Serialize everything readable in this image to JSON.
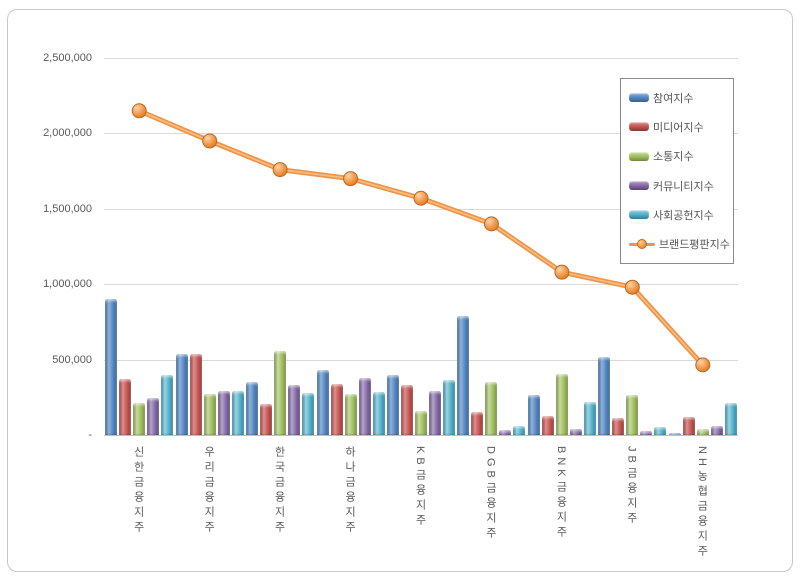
{
  "chart_data": {
    "type": "bar",
    "note": "combo chart: 5 clustered bar series + 1 line series with circular markers",
    "title": "",
    "xlabel": "",
    "ylabel": "",
    "categories": [
      "신한금융지주",
      "우리금융지주",
      "한국금융지주",
      "하나금융지주",
      "KB금융지주",
      "DGB금융지주",
      "BNK금융지주",
      "JB금융지주",
      "NH농협금융지주"
    ],
    "series": [
      {
        "name": "참여지수",
        "kind": "bar",
        "color": "#4F81BD",
        "values": [
          900000,
          540000,
          350000,
          430000,
          395000,
          790000,
          265000,
          520000,
          10000
        ]
      },
      {
        "name": "미디어지수",
        "kind": "bar",
        "color": "#C0504D",
        "values": [
          370000,
          535000,
          205000,
          340000,
          330000,
          150000,
          125000,
          115000,
          120000
        ]
      },
      {
        "name": "소통지수",
        "kind": "bar",
        "color": "#9BBB59",
        "values": [
          210000,
          270000,
          560000,
          275000,
          160000,
          350000,
          405000,
          265000,
          40000
        ]
      },
      {
        "name": "커뮤니티지수",
        "kind": "bar",
        "color": "#8064A2",
        "values": [
          245000,
          290000,
          330000,
          375000,
          295000,
          35000,
          40000,
          25000,
          60000
        ]
      },
      {
        "name": "사회공헌지수",
        "kind": "bar",
        "color": "#4BACC6",
        "values": [
          395000,
          290000,
          280000,
          285000,
          365000,
          60000,
          220000,
          50000,
          210000
        ]
      },
      {
        "name": "브랜드평판지수",
        "kind": "line",
        "color": "#F79646",
        "values": [
          2150000,
          1950000,
          1760000,
          1700000,
          1570000,
          1400000,
          1080000,
          980000,
          465000
        ]
      }
    ],
    "ylim": [
      0,
      2500000
    ],
    "ytick_step": 500000,
    "ytick_labels": [
      "-",
      "500,000",
      "1,000,000",
      "1,500,000",
      "2,000,000",
      "2,500,000"
    ],
    "grid": true,
    "legend_position": "top-right"
  }
}
